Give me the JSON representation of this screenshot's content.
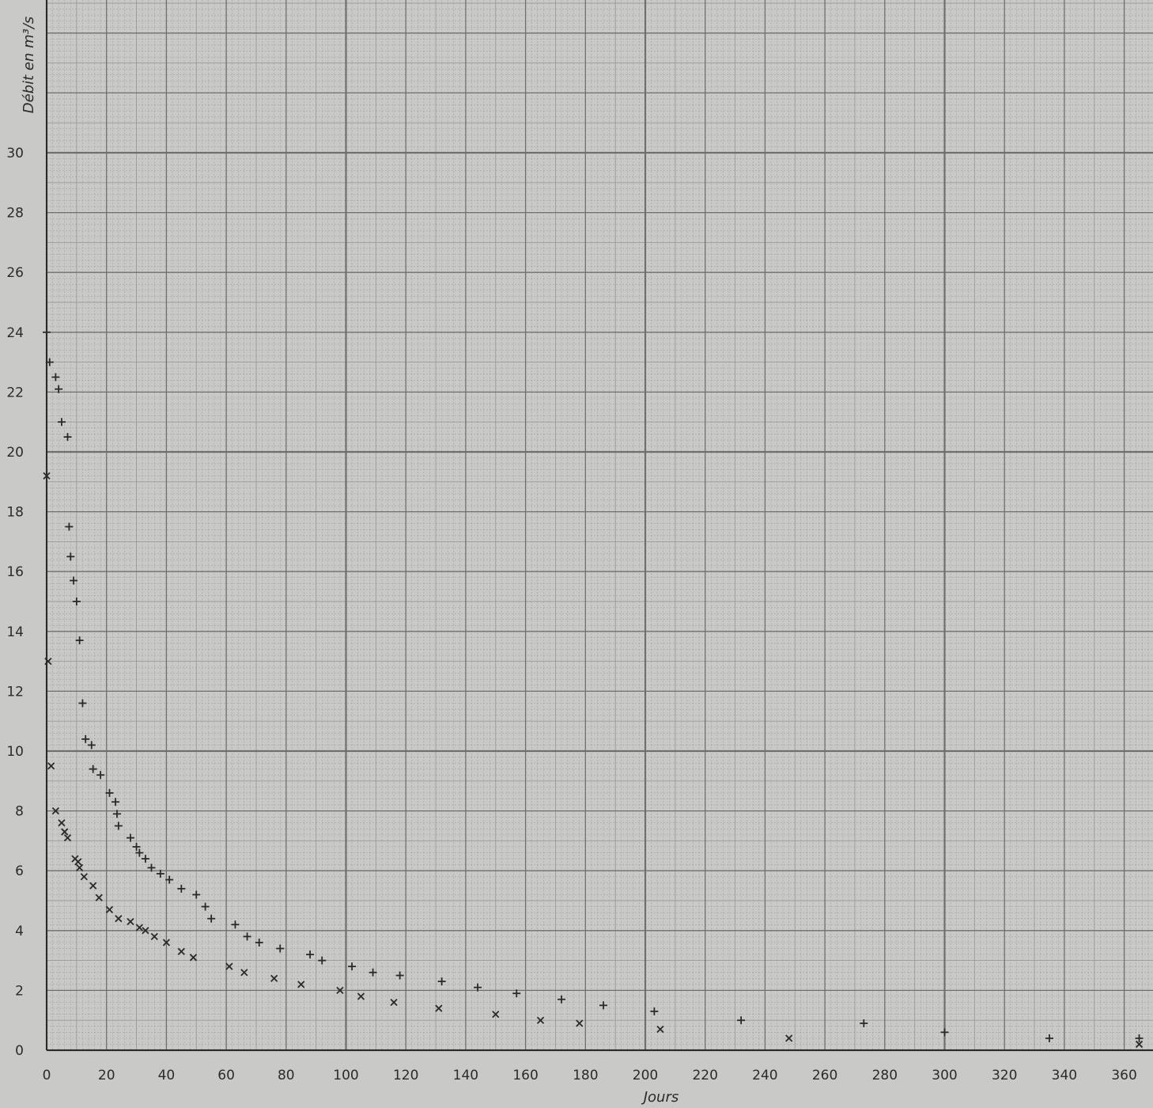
{
  "chart_data": {
    "type": "scatter",
    "title": "",
    "xlabel": "Jours",
    "ylabel": "Débit en m³/s",
    "xlim": [
      0,
      366
    ],
    "ylim": [
      0,
      35
    ],
    "grid": true,
    "legend": "none",
    "x_ticks": [
      "0",
      "20",
      "40",
      "60",
      "80",
      "100",
      "120",
      "140",
      "160",
      "180",
      "200",
      "220",
      "240",
      "260",
      "280",
      "300",
      "320",
      "340",
      "360"
    ],
    "y_ticks": [
      "0",
      "2",
      "4",
      "6",
      "8",
      "10",
      "12",
      "14",
      "16",
      "18",
      "20",
      "22",
      "24",
      "26",
      "28",
      "30"
    ],
    "colors": {
      "paper": "#c9c9c7",
      "grid_major": "#6f6f6f",
      "grid_minor": "#9a9a98",
      "marker": "#2a2a2a",
      "text": "#2b2b2b"
    },
    "series": [
      {
        "marker": "plus",
        "points": [
          [
            0,
            24.0
          ],
          [
            1,
            23.0
          ],
          [
            3,
            22.5
          ],
          [
            4,
            22.1
          ],
          [
            5,
            21.0
          ],
          [
            7,
            20.5
          ],
          [
            7.5,
            17.5
          ],
          [
            8,
            16.5
          ],
          [
            9,
            15.7
          ],
          [
            10,
            15.0
          ],
          [
            11,
            13.7
          ],
          [
            12,
            11.6
          ],
          [
            13,
            10.4
          ],
          [
            15,
            10.2
          ],
          [
            15.5,
            9.4
          ],
          [
            18,
            9.2
          ],
          [
            21,
            8.6
          ],
          [
            23,
            8.3
          ],
          [
            23.5,
            7.9
          ],
          [
            24,
            7.5
          ],
          [
            28,
            7.1
          ],
          [
            30,
            6.8
          ],
          [
            31,
            6.6
          ],
          [
            33,
            6.4
          ],
          [
            35,
            6.1
          ],
          [
            38,
            5.9
          ],
          [
            41,
            5.7
          ],
          [
            45,
            5.4
          ],
          [
            50,
            5.2
          ],
          [
            53,
            4.8
          ],
          [
            55,
            4.4
          ],
          [
            63,
            4.2
          ],
          [
            67,
            3.8
          ],
          [
            71,
            3.6
          ],
          [
            78,
            3.4
          ],
          [
            88,
            3.2
          ],
          [
            92,
            3.0
          ],
          [
            102,
            2.8
          ],
          [
            109,
            2.6
          ],
          [
            118,
            2.5
          ],
          [
            132,
            2.3
          ],
          [
            144,
            2.1
          ],
          [
            157,
            1.9
          ],
          [
            172,
            1.7
          ],
          [
            186,
            1.5
          ],
          [
            203,
            1.3
          ],
          [
            232,
            1.0
          ],
          [
            273,
            0.9
          ],
          [
            300,
            0.6
          ],
          [
            335,
            0.4
          ],
          [
            365,
            0.4
          ]
        ]
      },
      {
        "marker": "cross",
        "points": [
          [
            0,
            19.2
          ],
          [
            0.5,
            13.0
          ],
          [
            1.5,
            9.5
          ],
          [
            3,
            8.0
          ],
          [
            5,
            7.6
          ],
          [
            6,
            7.3
          ],
          [
            7,
            7.1
          ],
          [
            9.5,
            6.4
          ],
          [
            10.5,
            6.3
          ],
          [
            11,
            6.1
          ],
          [
            12.5,
            5.8
          ],
          [
            15.5,
            5.5
          ],
          [
            17.5,
            5.1
          ],
          [
            21,
            4.7
          ],
          [
            24,
            4.4
          ],
          [
            28,
            4.3
          ],
          [
            31,
            4.1
          ],
          [
            33,
            4.0
          ],
          [
            36,
            3.8
          ],
          [
            40,
            3.6
          ],
          [
            45,
            3.3
          ],
          [
            49,
            3.1
          ],
          [
            61,
            2.8
          ],
          [
            66,
            2.6
          ],
          [
            76,
            2.4
          ],
          [
            85,
            2.2
          ],
          [
            98,
            2.0
          ],
          [
            105,
            1.8
          ],
          [
            116,
            1.6
          ],
          [
            131,
            1.4
          ],
          [
            150,
            1.2
          ],
          [
            165,
            1.0
          ],
          [
            178,
            0.9
          ],
          [
            205,
            0.7
          ],
          [
            248,
            0.4
          ],
          [
            365,
            0.2
          ]
        ]
      }
    ]
  }
}
